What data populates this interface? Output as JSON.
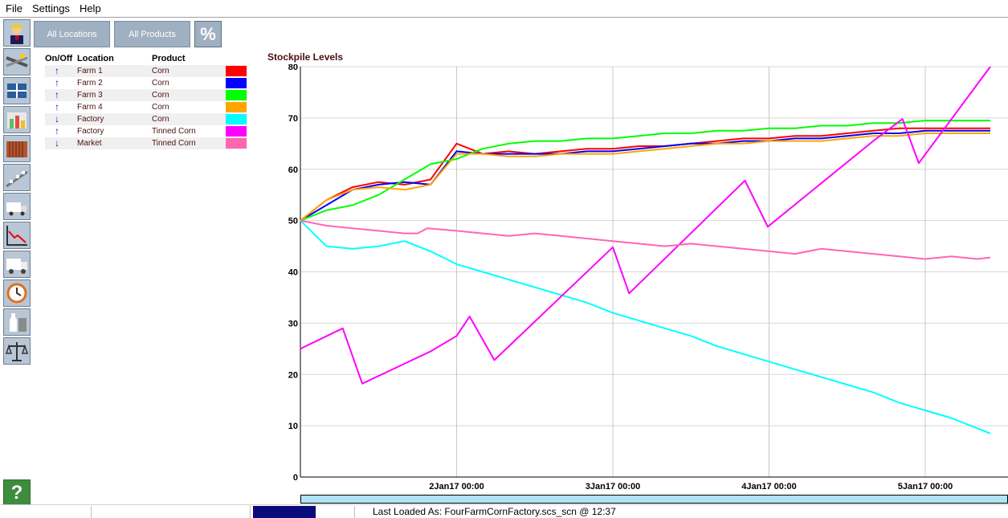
{
  "menu": [
    "File",
    "Settings",
    "Help"
  ],
  "toolbar": {
    "icons": [
      "engineer-icon",
      "pipes-icon",
      "network-icon",
      "storage-tanks-icon",
      "containers-icon",
      "conveyor-icon",
      "truck-loading-icon",
      "chart-trend-icon",
      "truck-icon",
      "clock-icon",
      "bottles-icon",
      "scales-icon"
    ],
    "help_label": "?"
  },
  "filters": {
    "all_locations": "All Locations",
    "all_products": "All Products",
    "percent": "%"
  },
  "table": {
    "headers": {
      "onoff": "On/Off",
      "location": "Location",
      "product": "Product"
    },
    "rows": [
      {
        "arrow": "up",
        "location": "Farm 1",
        "product": "Corn",
        "color": "#ff0000"
      },
      {
        "arrow": "up",
        "location": "Farm 2",
        "product": "Corn",
        "color": "#0000ff"
      },
      {
        "arrow": "up",
        "location": "Farm 3",
        "product": "Corn",
        "color": "#00ff00"
      },
      {
        "arrow": "up",
        "location": "Farm 4",
        "product": "Corn",
        "color": "#ffa500"
      },
      {
        "arrow": "down",
        "location": "Factory",
        "product": "Corn",
        "color": "#00ffff"
      },
      {
        "arrow": "up",
        "location": "Factory",
        "product": "Tinned Corn",
        "color": "#ff00ff"
      },
      {
        "arrow": "down",
        "location": "Market",
        "product": "Tinned Corn",
        "color": "#ff66b2"
      }
    ]
  },
  "chart_data": {
    "type": "line",
    "title": "Stockpile Levels",
    "xlabel": "",
    "ylabel": "",
    "ylim": [
      0,
      80
    ],
    "yticks": [
      0,
      10,
      20,
      30,
      40,
      50,
      60,
      70,
      80
    ],
    "xlim": [
      "1Jan17 00:00",
      "5Jan17 10:00"
    ],
    "xticks": [
      "2Jan17 00:00",
      "3Jan17 00:00",
      "4Jan17 00:00",
      "5Jan17 00:00"
    ],
    "grid": true,
    "x_hours": [
      0,
      4,
      8,
      12,
      16,
      20,
      24,
      28,
      32,
      36,
      40,
      44,
      48,
      52,
      56,
      60,
      64,
      68,
      72,
      76,
      80,
      84,
      88,
      92,
      96,
      100,
      104,
      106
    ],
    "series": [
      {
        "name": "Farm 1 Corn",
        "color": "#ff0000",
        "points": [
          [
            0,
            50
          ],
          [
            4,
            54
          ],
          [
            8,
            56.5
          ],
          [
            12,
            57.5
          ],
          [
            16,
            57
          ],
          [
            20,
            58
          ],
          [
            24,
            65
          ],
          [
            28,
            63
          ],
          [
            32,
            63.5
          ],
          [
            36,
            63
          ],
          [
            40,
            63.5
          ],
          [
            44,
            64
          ],
          [
            48,
            64
          ],
          [
            52,
            64.5
          ],
          [
            56,
            64.5
          ],
          [
            60,
            65
          ],
          [
            64,
            65.5
          ],
          [
            68,
            66
          ],
          [
            72,
            66
          ],
          [
            76,
            66.5
          ],
          [
            80,
            66.5
          ],
          [
            84,
            67
          ],
          [
            88,
            67.5
          ],
          [
            92,
            68
          ],
          [
            96,
            68
          ],
          [
            100,
            68
          ],
          [
            104,
            68
          ],
          [
            106,
            68
          ]
        ]
      },
      {
        "name": "Farm 2 Corn",
        "color": "#0000ff",
        "points": [
          [
            0,
            50
          ],
          [
            4,
            53
          ],
          [
            8,
            56
          ],
          [
            12,
            57
          ],
          [
            16,
            57.5
          ],
          [
            20,
            57
          ],
          [
            24,
            63.5
          ],
          [
            28,
            63
          ],
          [
            32,
            63
          ],
          [
            36,
            63
          ],
          [
            40,
            63
          ],
          [
            44,
            63.5
          ],
          [
            48,
            63.5
          ],
          [
            52,
            64
          ],
          [
            56,
            64.5
          ],
          [
            60,
            65
          ],
          [
            64,
            65
          ],
          [
            68,
            65.5
          ],
          [
            72,
            65.5
          ],
          [
            76,
            66
          ],
          [
            80,
            66
          ],
          [
            84,
            66.5
          ],
          [
            88,
            67
          ],
          [
            92,
            67
          ],
          [
            96,
            67.5
          ],
          [
            100,
            67.5
          ],
          [
            104,
            67.5
          ],
          [
            106,
            67.5
          ]
        ]
      },
      {
        "name": "Farm 3 Corn",
        "color": "#00ff00",
        "points": [
          [
            0,
            50
          ],
          [
            4,
            52
          ],
          [
            8,
            53
          ],
          [
            12,
            55
          ],
          [
            16,
            58
          ],
          [
            20,
            61
          ],
          [
            24,
            62
          ],
          [
            28,
            64
          ],
          [
            32,
            65
          ],
          [
            36,
            65.5
          ],
          [
            40,
            65.5
          ],
          [
            44,
            66
          ],
          [
            48,
            66
          ],
          [
            52,
            66.5
          ],
          [
            56,
            67
          ],
          [
            60,
            67
          ],
          [
            64,
            67.5
          ],
          [
            68,
            67.5
          ],
          [
            72,
            68
          ],
          [
            76,
            68
          ],
          [
            80,
            68.5
          ],
          [
            84,
            68.5
          ],
          [
            88,
            69
          ],
          [
            92,
            69
          ],
          [
            96,
            69.5
          ],
          [
            100,
            69.5
          ],
          [
            104,
            69.5
          ],
          [
            106,
            69.5
          ]
        ]
      },
      {
        "name": "Farm 4 Corn",
        "color": "#ffa500",
        "points": [
          [
            0,
            50
          ],
          [
            4,
            54
          ],
          [
            8,
            56
          ],
          [
            12,
            56.5
          ],
          [
            16,
            56
          ],
          [
            20,
            57
          ],
          [
            24,
            63
          ],
          [
            28,
            63
          ],
          [
            32,
            62.5
          ],
          [
            36,
            62.5
          ],
          [
            40,
            63
          ],
          [
            44,
            63
          ],
          [
            48,
            63
          ],
          [
            52,
            63.5
          ],
          [
            56,
            64
          ],
          [
            60,
            64.5
          ],
          [
            64,
            65
          ],
          [
            68,
            65
          ],
          [
            72,
            65.5
          ],
          [
            76,
            65.5
          ],
          [
            80,
            65.5
          ],
          [
            84,
            66
          ],
          [
            88,
            66.5
          ],
          [
            92,
            66.5
          ],
          [
            96,
            67
          ],
          [
            100,
            67
          ],
          [
            104,
            67
          ],
          [
            106,
            67
          ]
        ]
      },
      {
        "name": "Factory Corn",
        "color": "#00ffff",
        "points": [
          [
            0,
            50
          ],
          [
            4,
            45
          ],
          [
            8,
            44.5
          ],
          [
            12,
            45
          ],
          [
            16,
            46
          ],
          [
            20,
            44
          ],
          [
            24,
            41.5
          ],
          [
            28,
            40
          ],
          [
            32,
            38.5
          ],
          [
            36,
            37
          ],
          [
            40,
            35.5
          ],
          [
            44,
            34
          ],
          [
            48,
            32
          ],
          [
            52,
            30.5
          ],
          [
            56,
            29
          ],
          [
            60,
            27.5
          ],
          [
            64,
            25.5
          ],
          [
            68,
            24
          ],
          [
            72,
            22.5
          ],
          [
            76,
            21
          ],
          [
            80,
            19.5
          ],
          [
            84,
            18
          ],
          [
            88,
            16.5
          ],
          [
            92,
            14.5
          ],
          [
            96,
            13
          ],
          [
            100,
            11.5
          ],
          [
            104,
            9.5
          ],
          [
            106,
            8.5
          ]
        ]
      },
      {
        "name": "Factory Tinned Corn",
        "color": "#ff00ff",
        "points": [
          [
            0,
            25
          ],
          [
            6.5,
            29
          ],
          [
            9.5,
            18.2
          ],
          [
            20,
            24.5
          ],
          [
            24,
            27.5
          ],
          [
            26,
            31.3
          ],
          [
            29.8,
            22.8
          ],
          [
            48,
            44.8
          ],
          [
            50.5,
            35.8
          ],
          [
            68.3,
            57.8
          ],
          [
            71.8,
            48.8
          ],
          [
            88,
            65.5
          ],
          [
            92.5,
            69.8
          ],
          [
            95,
            61.2
          ],
          [
            106,
            80
          ]
        ]
      },
      {
        "name": "Market Tinned Corn",
        "color": "#ff66b2",
        "points": [
          [
            0,
            50
          ],
          [
            4,
            49
          ],
          [
            8,
            48.5
          ],
          [
            12,
            48
          ],
          [
            16,
            47.5
          ],
          [
            18,
            47.5
          ],
          [
            19.5,
            48.5
          ],
          [
            24,
            48
          ],
          [
            28,
            47.5
          ],
          [
            32,
            47
          ],
          [
            36,
            47.5
          ],
          [
            40,
            47
          ],
          [
            44,
            46.5
          ],
          [
            48,
            46
          ],
          [
            52,
            45.5
          ],
          [
            56,
            45
          ],
          [
            60,
            45.5
          ],
          [
            64,
            45
          ],
          [
            68,
            44.5
          ],
          [
            72,
            44
          ],
          [
            76,
            43.5
          ],
          [
            80,
            44.5
          ],
          [
            84,
            44
          ],
          [
            88,
            43.5
          ],
          [
            92,
            43
          ],
          [
            96,
            42.5
          ],
          [
            100,
            43
          ],
          [
            104,
            42.5
          ],
          [
            106,
            42.8
          ]
        ]
      }
    ]
  },
  "status": {
    "text": "Last Loaded As: FourFarmCornFactory.scs_scn @ 12:37",
    "progress": 1
  }
}
